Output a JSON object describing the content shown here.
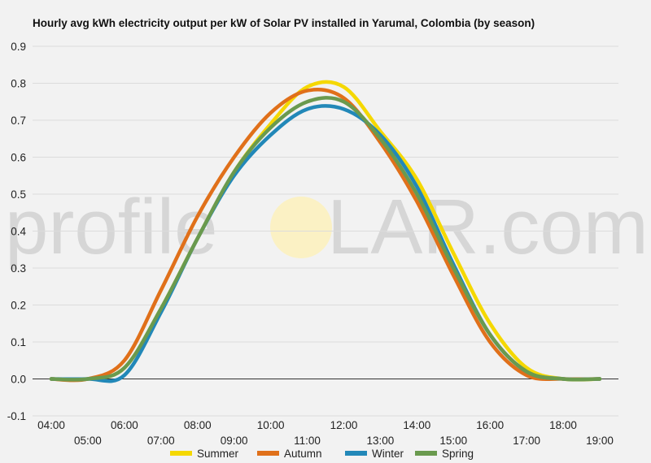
{
  "chart_data": {
    "type": "line",
    "title": "Hourly avg kWh electricity output per kW of Solar PV installed in Yarumal, Colombia (by season)",
    "xlabel": "",
    "ylabel": "",
    "x": [
      "04:00",
      "05:00",
      "06:00",
      "07:00",
      "08:00",
      "09:00",
      "10:00",
      "11:00",
      "12:00",
      "13:00",
      "14:00",
      "15:00",
      "16:00",
      "17:00",
      "18:00",
      "19:00"
    ],
    "ylim": [
      -0.1,
      0.9
    ],
    "yticks": [
      "-0.1",
      "0.0",
      "0.1",
      "0.2",
      "0.3",
      "0.4",
      "0.5",
      "0.6",
      "0.7",
      "0.8",
      "0.9"
    ],
    "grid": true,
    "legend_position": "bottom",
    "series": [
      {
        "name": "Summer",
        "color": "#f5d800",
        "values": [
          0.0,
          0.0,
          0.03,
          0.19,
          0.38,
          0.56,
          0.69,
          0.79,
          0.79,
          0.67,
          0.54,
          0.34,
          0.15,
          0.03,
          0.0,
          0.0
        ]
      },
      {
        "name": "Autumn",
        "color": "#e0701a",
        "values": [
          0.0,
          0.0,
          0.05,
          0.24,
          0.44,
          0.6,
          0.72,
          0.78,
          0.76,
          0.64,
          0.48,
          0.28,
          0.1,
          0.01,
          0.0,
          0.0
        ]
      },
      {
        "name": "Winter",
        "color": "#2288b8",
        "values": [
          0.0,
          0.0,
          0.01,
          0.18,
          0.38,
          0.55,
          0.66,
          0.73,
          0.73,
          0.66,
          0.52,
          0.31,
          0.12,
          0.02,
          0.0,
          0.0
        ]
      },
      {
        "name": "Spring",
        "color": "#6a9a4e",
        "values": [
          0.0,
          0.0,
          0.03,
          0.19,
          0.38,
          0.56,
          0.68,
          0.75,
          0.75,
          0.65,
          0.5,
          0.3,
          0.12,
          0.02,
          0.0,
          0.0
        ]
      }
    ]
  },
  "watermark": {
    "left": "profile",
    "right": "LAR.com",
    "sun_color": "#fbf1c4"
  }
}
